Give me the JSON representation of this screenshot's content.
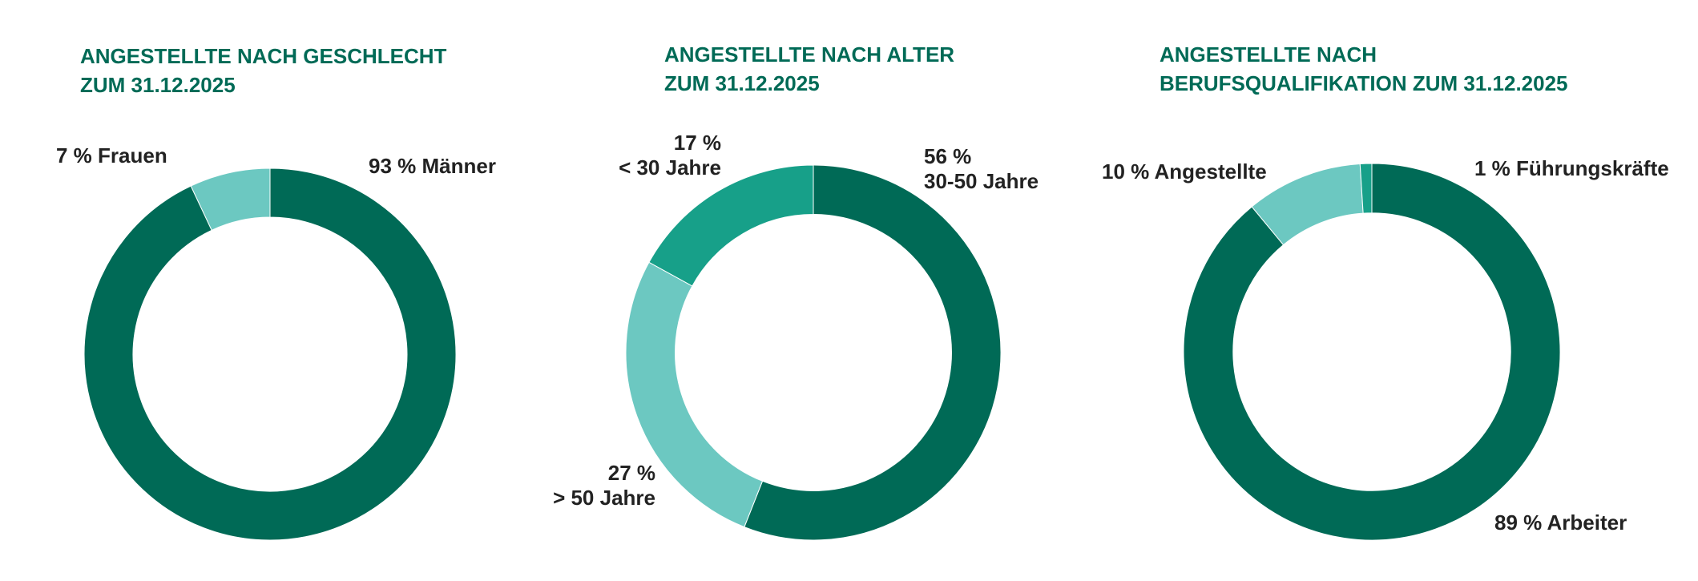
{
  "colors": {
    "dark": "#006a56",
    "light": "#6cc8c1",
    "mid": "#17a089"
  },
  "chart_data": [
    {
      "type": "pie",
      "title_lines": [
        "ANGESTELLTE NACH GESCHLECHT",
        "ZUM 31.12.2025"
      ],
      "slices": [
        {
          "name": "Männer",
          "value": 93,
          "label_lines": [
            "93 % Männer"
          ],
          "color": "#006a56"
        },
        {
          "name": "Frauen",
          "value": 7,
          "label_lines": [
            "7 % Frauen"
          ],
          "color": "#6cc8c1"
        }
      ]
    },
    {
      "type": "pie",
      "title_lines": [
        "ANGESTELLTE NACH ALTER",
        "ZUM 31.12.2025"
      ],
      "slices": [
        {
          "name": "30-50 Jahre",
          "value": 56,
          "label_lines": [
            "56 %",
            "30-50 Jahre"
          ],
          "color": "#006a56"
        },
        {
          "name": "> 50 Jahre",
          "value": 27,
          "label_lines": [
            "27 %",
            "> 50 Jahre"
          ],
          "color": "#6cc8c1"
        },
        {
          "name": "< 30 Jahre",
          "value": 17,
          "label_lines": [
            "17 %",
            "< 30 Jahre"
          ],
          "color": "#17a089"
        }
      ]
    },
    {
      "type": "pie",
      "title_lines": [
        "ANGESTELLTE NACH",
        "BERUFSQUALIFIKATION ZUM 31.12.2025"
      ],
      "slices": [
        {
          "name": "Arbeiter",
          "value": 89,
          "label_lines": [
            "89 % Arbeiter"
          ],
          "color": "#006a56"
        },
        {
          "name": "Angestellte",
          "value": 10,
          "label_lines": [
            "10 % Angestellte"
          ],
          "color": "#6cc8c1"
        },
        {
          "name": "Führungskräfte",
          "value": 1,
          "label_lines": [
            "1 % Führungskräfte"
          ],
          "color": "#17a089"
        }
      ]
    }
  ]
}
